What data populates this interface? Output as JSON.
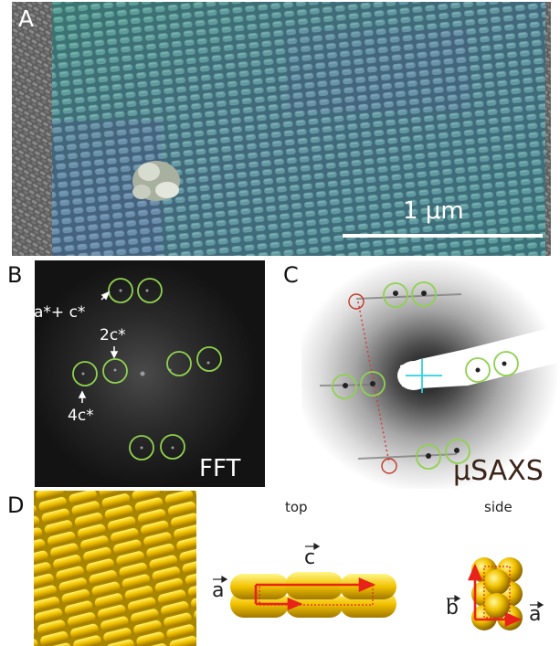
{
  "panelA": {
    "label": "A",
    "scalebar": "1 μm"
  },
  "panelB": {
    "label": "B",
    "corner_text": "FFT",
    "annot_ac": "a*+ c*",
    "annot_2c": "2c*",
    "annot_4c": "4c*"
  },
  "panelC": {
    "label": "C",
    "corner_text": "μSAXS"
  },
  "panelD": {
    "label": "D",
    "top_title": "top",
    "side_title": "side",
    "vec_c": "c",
    "vec_a": "a",
    "vec_b": "b",
    "vec_a_side": "a"
  },
  "colors": {
    "ring": "#8fd14f",
    "red_ring": "#c0392b",
    "arrow": "#e8231a",
    "gold": "#f2c200",
    "beamstop_cross": "#2ad3e0"
  }
}
